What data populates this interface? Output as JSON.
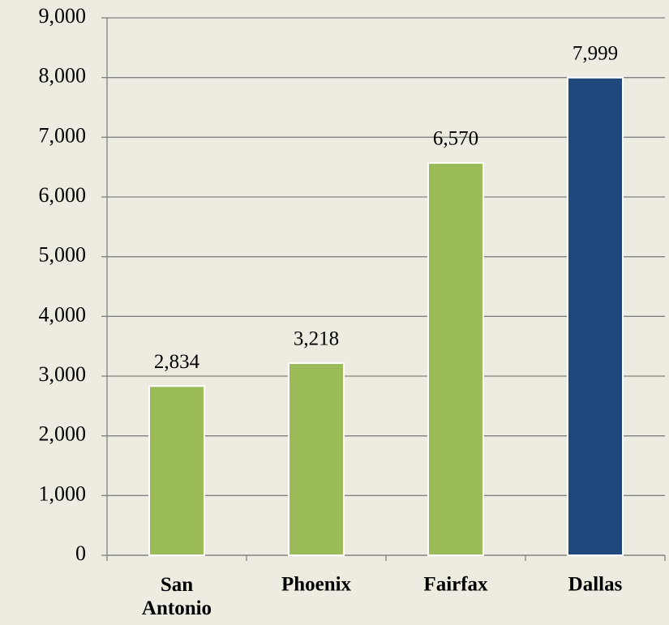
{
  "chart_data": {
    "type": "bar",
    "categories": [
      "San Antonio",
      "Phoenix",
      "Fairfax",
      "Dallas"
    ],
    "values": [
      2834,
      3218,
      6570,
      7999
    ],
    "value_labels": [
      "2,834",
      "3,218",
      "6,570",
      "7,999"
    ],
    "colors": [
      "#9bbb59",
      "#9bbb59",
      "#9bbb59",
      "#1f497d"
    ],
    "ylim": [
      0,
      9000
    ],
    "yticks": [
      {
        "value": 0,
        "label": "0"
      },
      {
        "value": 1000,
        "label": "1,000"
      },
      {
        "value": 2000,
        "label": "2,000"
      },
      {
        "value": 3000,
        "label": "3,000"
      },
      {
        "value": 4000,
        "label": "4,000"
      },
      {
        "value": 5000,
        "label": "5,000"
      },
      {
        "value": 6000,
        "label": "6,000"
      },
      {
        "value": 7000,
        "label": "7,000"
      },
      {
        "value": 8000,
        "label": "8,000"
      },
      {
        "value": 9000,
        "label": "9,000"
      }
    ],
    "grid": true
  }
}
